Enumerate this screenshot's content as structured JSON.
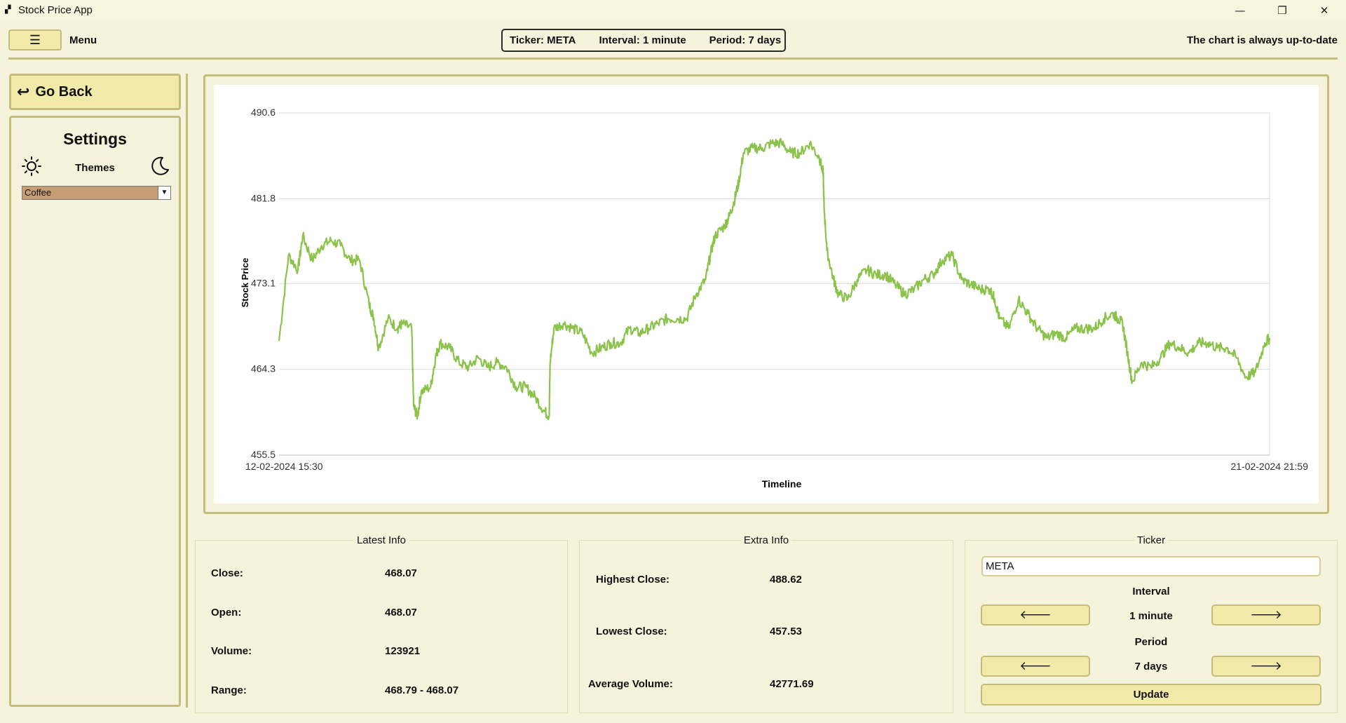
{
  "window": {
    "title": "Stock Price App",
    "app_icon": "chart-icon",
    "minimize": "—",
    "maximize": "❐",
    "close": "✕"
  },
  "header": {
    "menu_label": "Menu",
    "menu_icon": "☰",
    "ticker_text": "Ticker: META",
    "interval_text": "Interval: 1 minute",
    "period_text": "Period: 7 days",
    "status_text": "The chart is always up-to-date"
  },
  "sidebar": {
    "go_back_label": "Go Back",
    "go_back_icon": "↩",
    "settings_title": "Settings",
    "themes_label": "Themes",
    "theme_selected": "Coffee"
  },
  "chart_data": {
    "type": "line",
    "xlabel": "Timeline",
    "ylabel": "Stock Price",
    "x_start_label": "12-02-2024 15:30",
    "x_end_label": "21-02-2024 21:59",
    "ylim": [
      455.5,
      490.6
    ],
    "y_ticks": [
      "490.6",
      "481.8",
      "473.1",
      "464.3",
      "455.5"
    ],
    "grid": "horizontal",
    "line_color": "#8bc34a",
    "points": [
      [
        0,
        467.2
      ],
      [
        0.01,
        476.0
      ],
      [
        0.02,
        474.5
      ],
      [
        0.025,
        478.0
      ],
      [
        0.035,
        475.5
      ],
      [
        0.045,
        477.0
      ],
      [
        0.055,
        477.5
      ],
      [
        0.065,
        477.0
      ],
      [
        0.075,
        475.5
      ],
      [
        0.085,
        475.5
      ],
      [
        0.095,
        471.0
      ],
      [
        0.1,
        469.5
      ],
      [
        0.105,
        466.5
      ],
      [
        0.115,
        469.5
      ],
      [
        0.125,
        468.5
      ],
      [
        0.13,
        469.0
      ],
      [
        0.14,
        468.5
      ],
      [
        0.142,
        460.5
      ],
      [
        0.146,
        459.5
      ],
      [
        0.15,
        462.0
      ],
      [
        0.16,
        462.5
      ],
      [
        0.165,
        465.5
      ],
      [
        0.17,
        467.0
      ],
      [
        0.18,
        466.5
      ],
      [
        0.19,
        465.0
      ],
      [
        0.2,
        464.5
      ],
      [
        0.21,
        465.5
      ],
      [
        0.22,
        464.5
      ],
      [
        0.23,
        465.0
      ],
      [
        0.24,
        464.5
      ],
      [
        0.25,
        462.5
      ],
      [
        0.26,
        462.5
      ],
      [
        0.27,
        461.5
      ],
      [
        0.28,
        460.0
      ],
      [
        0.285,
        459.5
      ],
      [
        0.286,
        465.0
      ],
      [
        0.29,
        468.5
      ],
      [
        0.3,
        469.0
      ],
      [
        0.31,
        468.5
      ],
      [
        0.32,
        468.0
      ],
      [
        0.33,
        466.0
      ],
      [
        0.34,
        466.5
      ],
      [
        0.35,
        467.0
      ],
      [
        0.36,
        467.0
      ],
      [
        0.37,
        468.5
      ],
      [
        0.38,
        468.0
      ],
      [
        0.39,
        468.5
      ],
      [
        0.4,
        469.0
      ],
      [
        0.41,
        469.5
      ],
      [
        0.42,
        469.5
      ],
      [
        0.43,
        469.5
      ],
      [
        0.44,
        472.0
      ],
      [
        0.45,
        473.5
      ],
      [
        0.455,
        476.0
      ],
      [
        0.46,
        478.0
      ],
      [
        0.47,
        479.0
      ],
      [
        0.475,
        480.0
      ],
      [
        0.48,
        481.5
      ],
      [
        0.485,
        483.5
      ],
      [
        0.49,
        486.5
      ],
      [
        0.5,
        487.0
      ],
      [
        0.51,
        487.0
      ],
      [
        0.52,
        487.5
      ],
      [
        0.53,
        487.5
      ],
      [
        0.54,
        486.5
      ],
      [
        0.55,
        486.5
      ],
      [
        0.56,
        487.5
      ],
      [
        0.57,
        486.0
      ],
      [
        0.574,
        484.5
      ],
      [
        0.575,
        481.0
      ],
      [
        0.578,
        476.5
      ],
      [
        0.585,
        473.5
      ],
      [
        0.59,
        472.0
      ],
      [
        0.6,
        471.5
      ],
      [
        0.61,
        473.5
      ],
      [
        0.62,
        474.5
      ],
      [
        0.63,
        474.0
      ],
      [
        0.64,
        474.0
      ],
      [
        0.65,
        473.0
      ],
      [
        0.66,
        472.0
      ],
      [
        0.67,
        472.5
      ],
      [
        0.68,
        473.5
      ],
      [
        0.69,
        474.0
      ],
      [
        0.7,
        475.5
      ],
      [
        0.71,
        476.0
      ],
      [
        0.72,
        473.5
      ],
      [
        0.73,
        473.0
      ],
      [
        0.74,
        472.5
      ],
      [
        0.75,
        472.5
      ],
      [
        0.755,
        471.5
      ],
      [
        0.76,
        469.5
      ],
      [
        0.77,
        468.5
      ],
      [
        0.78,
        471.5
      ],
      [
        0.79,
        470.0
      ],
      [
        0.8,
        468.5
      ],
      [
        0.81,
        467.5
      ],
      [
        0.82,
        468.0
      ],
      [
        0.83,
        467.5
      ],
      [
        0.84,
        468.5
      ],
      [
        0.85,
        468.5
      ],
      [
        0.86,
        468.5
      ],
      [
        0.87,
        469.5
      ],
      [
        0.88,
        470.0
      ],
      [
        0.885,
        469.5
      ],
      [
        0.89,
        469.0
      ],
      [
        0.895,
        466.0
      ],
      [
        0.9,
        463.0
      ],
      [
        0.91,
        465.0
      ],
      [
        0.92,
        464.5
      ],
      [
        0.93,
        465.5
      ],
      [
        0.94,
        467.0
      ],
      [
        0.95,
        466.5
      ],
      [
        0.96,
        466.0
      ],
      [
        0.97,
        467.0
      ],
      [
        0.98,
        467.0
      ],
      [
        0.99,
        466.5
      ],
      [
        1.0,
        466.5
      ],
      [
        1.01,
        465.5
      ],
      [
        1.02,
        463.5
      ],
      [
        1.03,
        464.0
      ],
      [
        1.04,
        467.0
      ],
      [
        1.045,
        467.5
      ]
    ]
  },
  "latest_info": {
    "title": "Latest Info",
    "rows": [
      {
        "label": "Close:",
        "value": "468.07"
      },
      {
        "label": "Open:",
        "value": "468.07"
      },
      {
        "label": "Volume:",
        "value": "123921"
      },
      {
        "label": "Range:",
        "value": "468.79 - 468.07"
      }
    ]
  },
  "extra_info": {
    "title": "Extra Info",
    "rows": [
      {
        "label": "Highest Close:",
        "value": "488.62"
      },
      {
        "label": "Lowest Close:",
        "value": "457.53"
      },
      {
        "label": "Average Volume:",
        "value": "42771.69"
      }
    ]
  },
  "controls": {
    "title": "Ticker",
    "ticker_value": "META",
    "interval_label": "Interval",
    "interval_value": "1 minute",
    "period_label": "Period",
    "period_value": "7 days",
    "prev_icon": "🡐",
    "next_icon": "🡒",
    "update_label": "Update"
  }
}
